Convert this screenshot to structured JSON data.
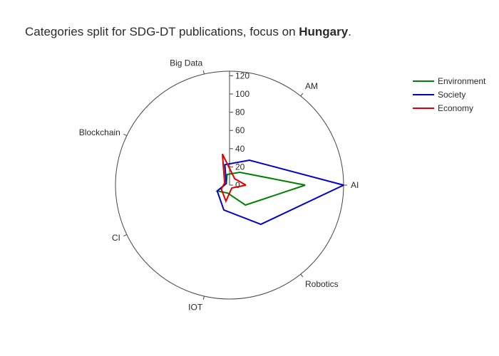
{
  "chart_data": {
    "type": "radar",
    "title_prefix": "Categories split for SDG-DT publications, focus on ",
    "title_bold": "Hungary",
    "title_suffix": ".",
    "categories": [
      "AI",
      "AM",
      "Big Data",
      "Blockchain",
      "CI",
      "IOT",
      "Robotics"
    ],
    "rlim": [
      0,
      125
    ],
    "radial_ticks": [
      0,
      20,
      40,
      60,
      80,
      100,
      120
    ],
    "series": [
      {
        "name": "Environment",
        "color": "#008000",
        "values": [
          83,
          18,
          12,
          4,
          15,
          9,
          28
        ]
      },
      {
        "name": "Society",
        "color": "#0000cc",
        "values": [
          125,
          35,
          23,
          4,
          15,
          28,
          55
        ]
      },
      {
        "name": "Economy",
        "color": "#dd0000",
        "values": [
          18,
          9,
          35,
          6,
          10,
          18,
          4
        ]
      }
    ],
    "legend_position": "top-right"
  }
}
